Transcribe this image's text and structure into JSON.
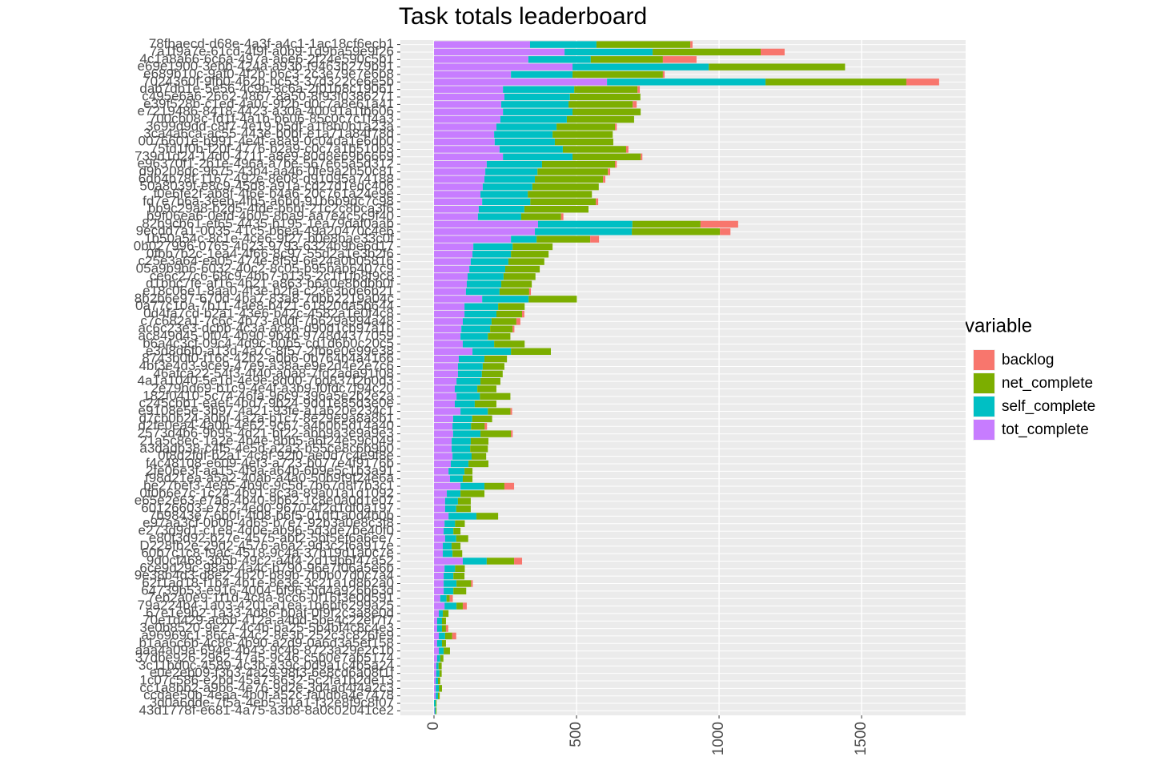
{
  "chart_data": {
    "type": "stacked_barh",
    "title": "Task totals leaderboard",
    "legend_title": "variable",
    "categories": [
      "78fbaecd-d68e-4a3f-a4c1-1ac18cf6ecb1",
      "7a1f9a7e-61cd-4f9f-a0b9-1d9ba59e9f26",
      "4c1a8a66-6c6a-497a-a6e6-2f24e590c5b1",
      "e69e1900-3ebb-424a-a93b-f9463b279b91",
      "e689b10c-9af0-4f2b-b6c3-2c3e79e7e6b8",
      "7024360f-9fb0-462b-bc53-37d322ce6e5b",
      "dab7db1e-5e56-4c9b-8c6a-2f01b8c19061",
      "c495e6a6-2662-4867-8a50-8f93f0386271",
      "e39f528b-c1ed-4a0c-9f2b-d0c7a8e61a41",
      "e7219486-8418-4423-a30a-40091a1fb606",
      "700cb08c-fd1f-4a1b-b606-85c0c7c1f4a3",
      "3699d9dd-c8f7-4e19-b5df-a1f8b0b1a23a",
      "3ca4a6ca-ac55-443e-b0bf-e1a71a84f78d",
      "0076601e-b991-4e4f-a8a9-0c04da1e6db0",
      "75fd1f0b-f20f-4776-b2a9-c0c7a1b510b3",
      "739d1d24-14d0-4711-a8e9-80d8e69b6669",
      "e96370f1-2b1e-496a-a7be-567e65a5d312",
      "d9b208dc-9675-43b4-aa46-0fe9a2b50c81",
      "6db4b78f-1167-492e-8e08-d91095a74188",
      "50a8039f-e8c9-45d8-a91a-cd27d1edc406",
      "f0e6fe2f-ab8f-4f6e-b4a6-20c761a24e9e",
      "fd7e7b6a-3eeb-4fb5-a6bd-91b6b9dc7c98",
      "bb9c29a8-b2d5-4fde-b6bf-21c2c8bca3f6",
      "b9f06ea6-0efd-4b05-8ba9-aa7e4c5c9f40",
      "82b9cb61-ef65-4435-b195-1ea79daf0aab",
      "9ecdd7a1-0035-41c5-b6ea-49a20470c4e6",
      "1b50a54c-8c1e-4ce6-9f27-b0e8bae33c0f",
      "0b027996-0765-4b23-9793-6324b9be6d17",
      "0fbb7b2c-1ea4-4f66-8c97-55d2a1e3b2f6",
      "c25e3a64-ea05-474e-8f59-6e24a0b05816",
      "05a9b9b6-6032-40c2-8c05-b95bab6407c9",
      "ce6c27c6-68c9-4bb7-b135-2c1f1fb8f9c8",
      "d1bbc7fe-af16-4b21-a863-b6a0e8bdbb0f",
      "e18c06e1-8aa0-4f3e-b2fa-c23e3bde6b21",
      "8b2b6e97-670d-4ba7-83a8-7dbb2219a04c",
      "0a77c10a-7b11-4ae8-b421-61820da5b644",
      "0d4fa7cd-b2a1-43e6-b42c-4582a1e0f4c8",
      "c7c682a1-7c6c-4b73-a0df-7b629a994a48",
      "ac6c23e3-dcbb-4c3a-ac8a-d90d1cb97a1b",
      "ac849d45-0f04-4b90-9b4b-9748d4377059",
      "b6a4c3cf-09c4-4d9c-b0b5-cd1d6b0c20c5",
      "e3d8d6f0-a13d-4a7c-8f57-2fb6e0e99e38",
      "8743b0f0-f16c-42b2-a0b6-0b764b4a4166",
      "4bf3e4d3-9ce9-47e9-a38a-e9e2d4e2e7c6",
      "46afca22-54f3-4f40-a0a8-7fd2ada91f08",
      "4a1a1040-5e1d-4e9e-8d00-7bd837f2b0d3",
      "2e79bd69-b1c9-4e4f-a3b9-f0fdc7f94c20",
      "182f0410-5c74-46fa-96c9-396a5e2b2e2a",
      "c245cbb1-eaef-4bd7-9b24-9dd1e85d3e0e",
      "e9108e5e-3b97-4a21-93fe-a1a620e234c1",
      "d7cb0b24-a0bf-4a2a-b1c7-8e29e9a8a8b1",
      "d2fe0ea4-4a0b-4e62-9c67-a4b0b5d14a40",
      "2573d4b6-9b95-4d21-bf22-abb9a3e9a9e3",
      "21a5c8ec-1a2e-4b4e-8bb5-a6f24e59c049",
      "a3dadb38-c4f5-4e5d-a2a3-b55ce8c6b9b0",
      "0f8d2fdf-b2a1-4c8f-92f0-ae0d7c4e9f8e",
      "f4c48108-e609-4ef3-a723-b077e4f9176b",
      "2fe06e3f-aa15-4f9a-a64b-6b9e5c1b3a91",
      "f98d21ea-a5a2-40ab-a4a0-50b9f9f24e6a",
      "be27bef3-4e85-4b9c-9c5d-7b67d8f7b3c1",
      "0f0b6e7c-1c24-4b91-8c3a-89a01a1d1092",
      "e65e2e63-e7a6-4b40-9b62-1c8e0a0d1e07",
      "60126603-e782-4ed0-9670-4f2d1df0a197",
      "7b9843e7-6b0f-4f08-b6f5-01df1a0d4b0b",
      "e97aa3cf-0b0b-4d65-b7e7-92b3a0e8c3f8",
      "e273d9d1-c1e8-4d0e-ab96-5d3de7be40f0",
      "e80f3d92-b27e-4575-abf2-5bf5ef6a6ee7",
      "D228fb2e-29d2-4576-a6a2-9d3c2f6a917e",
      "60b7c1c8-f9ac-4518-9c4a-37b19d1a0c7e",
      "9d0cf468-3b5b-49c2-a4f4-2d19b6f47a52",
      "6ce9d29c-98a9-4a4c-b790-96e7f06a5e6b",
      "9e38b4d3-d8e2-4b20-b89b-7b0b07d0c7a4",
      "62f1ad18-f1b4-4b1e-8e3e-3c21a1d8b2a0",
      "64739b53-e916-4004-bf96-5fd4a926b63d",
      "7eb2a0e9-1f1d-4c8a-8cc6-0f16f3e0d591",
      "79a224b4-1a03-4201-a1ea-1b6bf6299a25",
      "67e1e9b2-1a33-4d86-b0af-0f9f2c3a8e0d",
      "70e1d429-ac6b-412a-a4bd-5be4c22ef7f7",
      "3e0b8520-9e27-4c4b-ba25-5b4bf4c8c4e3",
      "a96969c1-86ca-44c2-8e3b-252c3c826fe9",
      "b1aa6c6b-4c86-4b90-a2d9-0a6d3a5ef158",
      "aaa4a09a-694e-4b43-9c46-8723a29e2c1b",
      "37dbe926-2962-47a5-9c46-c5b0e7ab5174",
      "3c11bd0c-4589-4c3b-a39c-0d9a1c4b5a24",
      "e0e2eb09-f3b3-4a29-98f3-6e8cd6a08f1f",
      "1c07c586-e2bd-45a7-8632-5c2fa1b2de13",
      "cc1a8bb2-a9b6-4e76-9d2e-3d4ad4f4a2c3",
      "ccdae50b-4eaa-4b0f-a52c-fa0dba4e7478",
      "3d0a6dde-7f5a-4eb5-91a1-f32e8f9c8f07",
      "43d1778f-e681-4a75-a3b8-8a0c02041ce2"
    ],
    "series": [
      {
        "name": "tot_complete",
        "color": "#C77CFF",
        "values": [
          337,
          458,
          331,
          486,
          270,
          607,
          242,
          247,
          236,
          242,
          233,
          219,
          211,
          213,
          230,
          242,
          185,
          180,
          177,
          171,
          163,
          169,
          157,
          154,
          365,
          354,
          270,
          138,
          135,
          129,
          124,
          118,
          115,
          112,
          169,
          107,
          107,
          101,
          96,
          93,
          101,
          135,
          87,
          84,
          84,
          79,
          73,
          79,
          73,
          93,
          67,
          65,
          67,
          62,
          62,
          65,
          59,
          51,
          56,
          93,
          45,
          39,
          39,
          51,
          37,
          34,
          39,
          31,
          31,
          101,
          37,
          34,
          34,
          34,
          22,
          37,
          17,
          11,
          11,
          17,
          11,
          17,
          11,
          8,
          8,
          6,
          6,
          6,
          0,
          2
        ]
      },
      {
        "name": "self_complete",
        "color": "#00BFC4",
        "values": [
          233,
          309,
          219,
          478,
          216,
          556,
          250,
          230,
          236,
          244,
          233,
          211,
          205,
          211,
          222,
          244,
          194,
          183,
          177,
          174,
          166,
          169,
          160,
          152,
          331,
          340,
          90,
          138,
          135,
          132,
          126,
          126,
          121,
          118,
          163,
          118,
          112,
          101,
          101,
          96,
          110,
          135,
          90,
          87,
          84,
          84,
          79,
          82,
          70,
          96,
          67,
          65,
          96,
          67,
          65,
          67,
          62,
          56,
          45,
          84,
          48,
          45,
          39,
          98,
          37,
          34,
          39,
          31,
          34,
          84,
          37,
          34,
          45,
          34,
          22,
          42,
          14,
          17,
          17,
          22,
          17,
          17,
          11,
          8,
          11,
          8,
          11,
          8,
          6,
          4
        ]
      },
      {
        "name": "net_complete",
        "color": "#7CAE00",
        "values": [
          329,
          379,
          253,
          478,
          317,
          494,
          222,
          247,
          225,
          239,
          236,
          205,
          211,
          205,
          222,
          239,
          256,
          247,
          239,
          233,
          225,
          230,
          225,
          140,
          239,
          309,
          188,
          140,
          132,
          126,
          121,
          112,
          107,
          104,
          169,
          93,
          90,
          87,
          79,
          79,
          107,
          140,
          79,
          76,
          73,
          70,
          67,
          107,
          76,
          79,
          70,
          48,
          107,
          62,
          62,
          51,
          70,
          28,
          34,
          70,
          84,
          45,
          51,
          76,
          34,
          25,
          42,
          31,
          34,
          96,
          34,
          39,
          51,
          45,
          11,
          22,
          20,
          14,
          14,
          25,
          14,
          22,
          11,
          11,
          8,
          8,
          11,
          6,
          3,
          3
        ]
      },
      {
        "name": "backlog",
        "color": "#F8766D",
        "values": [
          8,
          84,
          118,
          0,
          6,
          115,
          8,
          0,
          14,
          0,
          0,
          6,
          0,
          0,
          8,
          6,
          6,
          8,
          8,
          0,
          0,
          8,
          0,
          8,
          132,
          37,
          31,
          0,
          0,
          0,
          0,
          0,
          0,
          6,
          0,
          0,
          8,
          14,
          6,
          0,
          0,
          0,
          0,
          0,
          0,
          0,
          0,
          0,
          0,
          6,
          0,
          8,
          6,
          0,
          0,
          0,
          0,
          0,
          0,
          34,
          0,
          0,
          0,
          0,
          0,
          0,
          0,
          0,
          0,
          28,
          0,
          0,
          6,
          0,
          11,
          14,
          0,
          0,
          8,
          14,
          0,
          0,
          0,
          0,
          0,
          0,
          0,
          0,
          0,
          0
        ]
      }
    ],
    "legend_order": [
      3,
      2,
      1,
      0
    ],
    "xlim": [
      -118,
      1865
    ],
    "xticks": [
      0,
      500,
      1000,
      1500
    ],
    "grid": true,
    "legend": "right"
  }
}
